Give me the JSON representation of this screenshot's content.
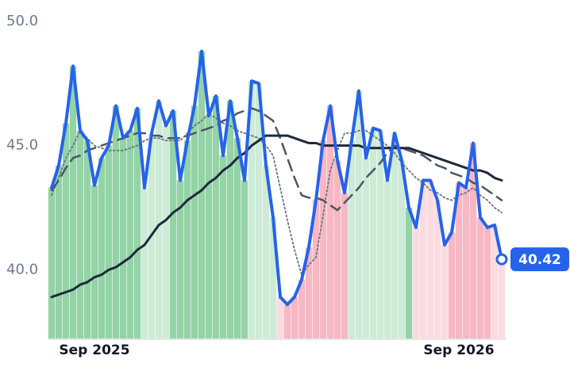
{
  "chart_data": {
    "type": "line",
    "categories": [
      null,
      null,
      null,
      null,
      null,
      null,
      "Sep 2025",
      null,
      null,
      null,
      null,
      null,
      null,
      null,
      null,
      null,
      null,
      null,
      null,
      null,
      null,
      null,
      null,
      null,
      null,
      null,
      null,
      null,
      null,
      null,
      null,
      null,
      null,
      null,
      null,
      null,
      null,
      null,
      null,
      null,
      null,
      null,
      null,
      null,
      null,
      null,
      null,
      null,
      null,
      null,
      null,
      null,
      null,
      null,
      null,
      null,
      null,
      "Sep 2026",
      null,
      null,
      null,
      null,
      null,
      null
    ],
    "ylim": [
      37.2,
      50
    ],
    "yticks": [
      {
        "value": 40,
        "label": "40.0"
      },
      {
        "value": 45,
        "label": "45.0"
      },
      {
        "value": 50,
        "label": "50.0"
      }
    ],
    "xticks": [
      6,
      57
    ],
    "area_colors": [
      "#93d3a6",
      "#93d3a6",
      "#93d3a6",
      "#93d3a6",
      "#93d3a6",
      "#93d3a6",
      "#93d3a6",
      "#93d3a6",
      "#93d3a6",
      "#93d3a6",
      "#93d3a6",
      "#93d3a6",
      "#93d3a6",
      "#cdebd6",
      "#cdebd6",
      "#cdebd6",
      "#cdebd6",
      "#93d3a6",
      "#93d3a6",
      "#93d3a6",
      "#93d3a6",
      "#93d3a6",
      "#93d3a6",
      "#93d3a6",
      "#93d3a6",
      "#93d3a6",
      "#93d3a6",
      "#93d3a6",
      "#cdebd6",
      "#cdebd6",
      "#cdebd6",
      "#cdebd6",
      "#fbdbe1",
      "#f7b7c3",
      "#f7b7c3",
      "#f7b7c3",
      "#f7b7c3",
      "#f7b7c3",
      "#f7b7c3",
      "#f7b7c3",
      "#f7b7c3",
      "#f7b7c3",
      "#cdebd6",
      "#cdebd6",
      "#cdebd6",
      "#cdebd6",
      "#cdebd6",
      "#cdebd6",
      "#cdebd6",
      "#cdebd6",
      "#93d3a6",
      "#fbdbe1",
      "#fbdbe1",
      "#fbdbe1",
      "#fbdbe1",
      "#fbdbe1",
      "#f7b7c3",
      "#f7b7c3",
      "#f7b7c3",
      "#f7b7c3",
      "#f7b7c3",
      "#f7b7c3",
      "#fbdbe1",
      "#fbdbe1"
    ],
    "series": [
      {
        "color": "#2563eb",
        "style": "solid",
        "width": 4,
        "values": [
          43.3,
          44.2,
          45.9,
          48.2,
          45.6,
          45.2,
          43.4,
          44.5,
          45.0,
          46.6,
          45.3,
          45.6,
          46.5,
          43.3,
          45.5,
          46.8,
          45.8,
          46.4,
          43.6,
          45.2,
          46.6,
          48.8,
          46.2,
          47.0,
          44.6,
          46.8,
          45.3,
          43.6,
          47.6,
          47.5,
          44.2,
          42.1,
          38.9,
          38.6,
          38.9,
          39.6,
          40.9,
          42.8,
          45.2,
          46.6,
          44.4,
          43.1,
          45.2,
          47.2,
          44.5,
          45.7,
          45.6,
          43.6,
          45.5,
          44.4,
          42.5,
          41.7,
          43.6,
          43.6,
          42.8,
          41.0,
          41.5,
          43.5,
          43.3,
          45.1,
          42.1,
          41.7,
          41.8,
          40.42
        ]
      },
      {
        "color": "#1e293b",
        "style": "solid",
        "width": 3,
        "values": [
          38.9,
          39.0,
          39.1,
          39.2,
          39.4,
          39.5,
          39.7,
          39.8,
          40.0,
          40.1,
          40.3,
          40.5,
          40.8,
          41.0,
          41.4,
          41.8,
          42.0,
          42.3,
          42.5,
          42.8,
          43.0,
          43.2,
          43.5,
          43.7,
          44.0,
          44.2,
          44.5,
          44.7,
          45.0,
          45.2,
          45.4,
          45.4,
          45.4,
          45.4,
          45.3,
          45.2,
          45.1,
          45.1,
          45.0,
          45.0,
          45.0,
          45.0,
          45.0,
          45.0,
          44.9,
          44.9,
          44.9,
          44.9,
          44.9,
          44.9,
          44.9,
          44.8,
          44.7,
          44.6,
          44.5,
          44.4,
          44.3,
          44.2,
          44.1,
          44.0,
          44.0,
          43.9,
          43.7,
          43.6
        ]
      },
      {
        "color": "#4b5563",
        "style": "dashed",
        "width": 2.5,
        "values": [
          43.2,
          43.6,
          44.1,
          44.5,
          44.6,
          44.8,
          44.9,
          45.0,
          45.1,
          45.2,
          45.3,
          45.4,
          45.5,
          45.5,
          45.4,
          45.4,
          45.3,
          45.3,
          45.3,
          45.4,
          45.5,
          45.6,
          45.7,
          45.8,
          46.0,
          46.1,
          46.3,
          46.4,
          46.5,
          46.4,
          46.2,
          46.0,
          45.3,
          44.5,
          43.7,
          43.0,
          42.9,
          42.9,
          42.8,
          42.6,
          42.4,
          42.7,
          43.0,
          43.3,
          43.7,
          44.0,
          44.3,
          44.7,
          45.0,
          44.9,
          44.8,
          44.7,
          44.6,
          44.4,
          44.2,
          44.1,
          43.9,
          43.8,
          43.7,
          43.5,
          43.4,
          43.2,
          43.0,
          42.8
        ]
      },
      {
        "color": "#6b7280",
        "style": "dotted",
        "width": 1.8,
        "values": [
          43.0,
          43.7,
          44.5,
          45.0,
          45.6,
          45.3,
          45.0,
          44.9,
          44.8,
          44.8,
          44.8,
          44.9,
          45.0,
          45.2,
          45.3,
          45.3,
          45.2,
          45.2,
          45.2,
          45.5,
          45.8,
          46.0,
          46.3,
          46.1,
          45.9,
          45.8,
          45.6,
          45.5,
          45.4,
          45.3,
          45.0,
          44.6,
          43.3,
          42.0,
          40.8,
          39.8,
          40.2,
          40.5,
          42.2,
          44.0,
          44.8,
          45.5,
          45.5,
          45.6,
          45.6,
          45.4,
          45.2,
          45.0,
          44.7,
          44.3,
          44.0,
          43.7,
          43.5,
          43.2,
          43.1,
          42.9,
          42.8,
          43.0,
          43.1,
          43.3,
          43.0,
          42.8,
          42.5,
          42.3
        ]
      }
    ]
  }
}
